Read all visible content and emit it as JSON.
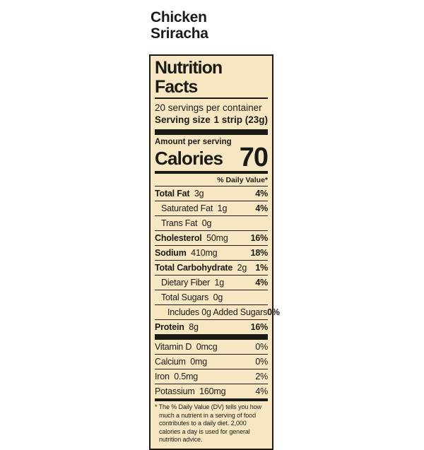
{
  "product": {
    "title_line1": "Chicken",
    "title_line2": "Sriracha"
  },
  "label": {
    "title": "Nutrition Facts",
    "servings_per_container": "20 servings per container",
    "serving_size_label": "Serving size",
    "serving_size_value": "1 strip (23g)",
    "amount_per_serving": "Amount per serving",
    "calories_label": "Calories",
    "calories_value": "70",
    "daily_value_header": "% Daily Value*",
    "rows": [
      {
        "name": "Total Fat",
        "amount": "3g",
        "dv": "4%",
        "bold": true,
        "indent": 0
      },
      {
        "name": "Saturated Fat",
        "amount": "1g",
        "dv": "4%",
        "bold": false,
        "indent": 1
      },
      {
        "name": "Trans Fat",
        "amount": "0g",
        "dv": "",
        "bold": false,
        "indent": 1
      },
      {
        "name": "Cholesterol",
        "amount": "50mg",
        "dv": "16%",
        "bold": true,
        "indent": 0
      },
      {
        "name": "Sodium",
        "amount": "410mg",
        "dv": "18%",
        "bold": true,
        "indent": 0
      },
      {
        "name": "Total Carbohydrate",
        "amount": "2g",
        "dv": "1%",
        "bold": true,
        "indent": 0
      },
      {
        "name": "Dietary Fiber",
        "amount": "1g",
        "dv": "4%",
        "bold": false,
        "indent": 1
      },
      {
        "name": "Total Sugars",
        "amount": "0g",
        "dv": "",
        "bold": false,
        "indent": 1
      },
      {
        "name": "Includes 0g Added Sugars",
        "amount": "",
        "dv": "0%",
        "bold": false,
        "indent": 2
      },
      {
        "name": "Protein",
        "amount": "8g",
        "dv": "16%",
        "bold": true,
        "indent": 0
      }
    ],
    "vitamins": [
      {
        "name": "Vitamin D",
        "amount": "0mcg",
        "dv": "0%"
      },
      {
        "name": "Calcium",
        "amount": "0mg",
        "dv": "0%"
      },
      {
        "name": "Iron",
        "amount": "0.5mg",
        "dv": "2%"
      },
      {
        "name": "Potassium",
        "amount": "160mg",
        "dv": "4%"
      }
    ],
    "footnote": "* The % Daily Value (DV) tells you how much a nutrient in a serving of food contributes to a daily diet. 2,000 calories a day is used for general nutrition advice."
  },
  "colors": {
    "page_bg": "#ffffff",
    "label_bg": "#f7e6c2",
    "ink": "#1b1a15"
  }
}
